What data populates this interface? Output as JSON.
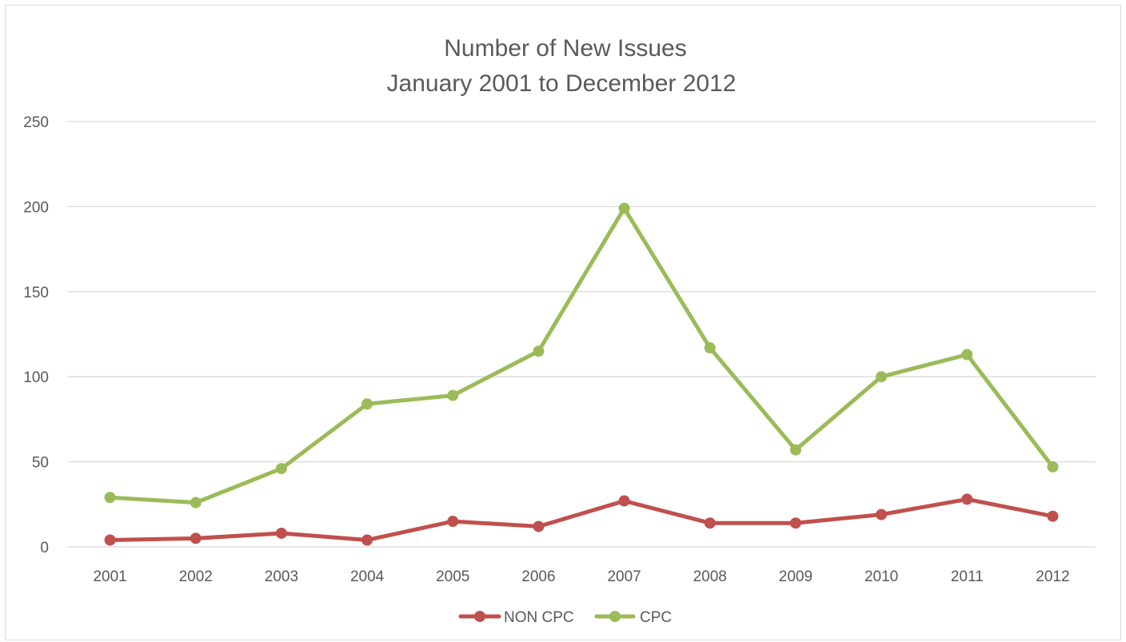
{
  "chart_data": {
    "type": "line",
    "title": [
      "Number of New Issues",
      "January 2001 to December 2012"
    ],
    "xlabel": "",
    "ylabel": "",
    "categories": [
      "2001",
      "2002",
      "2003",
      "2004",
      "2005",
      "2006",
      "2007",
      "2008",
      "2009",
      "2010",
      "2011",
      "2012"
    ],
    "ylim": [
      0,
      250
    ],
    "yticks": [
      0,
      50,
      100,
      150,
      200,
      250
    ],
    "grid": true,
    "legend_position": "bottom",
    "series": [
      {
        "name": "NON CPC",
        "color": "#c0504d",
        "values": [
          4,
          5,
          8,
          4,
          15,
          12,
          27,
          14,
          14,
          19,
          28,
          18
        ]
      },
      {
        "name": "CPC",
        "color": "#9bbb59",
        "values": [
          29,
          26,
          46,
          84,
          89,
          115,
          199,
          117,
          57,
          100,
          113,
          47
        ]
      }
    ]
  },
  "colors": {
    "gridline": "#d9d9d9",
    "text": "#595959",
    "border": "#d9d9d9"
  }
}
